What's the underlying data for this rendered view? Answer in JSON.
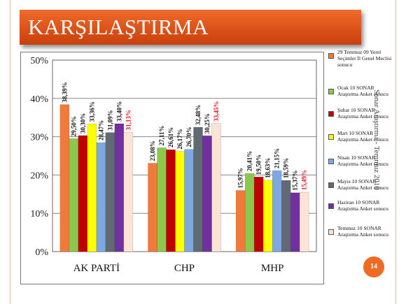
{
  "slide": {
    "title": "KARŞILAŞTIRMA",
    "side_text": "Sonar Araştırma - Temmuz 2010",
    "page_number": "14"
  },
  "colors": {
    "title_bar": "#e8561a",
    "badge": "#ef6a22"
  },
  "chart_data": {
    "type": "bar",
    "title": "",
    "xlabel": "",
    "ylabel": "",
    "ylim": [
      0,
      50
    ],
    "y_ticks": [
      "0%",
      "10%",
      "20%",
      "30%",
      "40%",
      "50%"
    ],
    "categories": [
      "AK PARTİ",
      "CHP",
      "MHP"
    ],
    "series": [
      {
        "name": "29 Temmuz 09 Yerel Seçimler İl Genel Meclisi sonucu",
        "color": "#f07a3a",
        "values": [
          38.39,
          23.08,
          15.97
        ],
        "labels": [
          "38,39%",
          "23,08%",
          "15,97%"
        ]
      },
      {
        "name": "Ocak 10 SONAR Araştırma Anket sonucu",
        "color": "#8cc84b",
        "values": [
          29.5,
          27.11,
          20.41
        ],
        "labels": [
          "29,50%",
          "27,11%",
          "20,41%"
        ]
      },
      {
        "name": "Şubat 10 SONAR Araştırma Anket sonucu",
        "color": "#c00000",
        "values": [
          30.3,
          26.61,
          19.5
        ],
        "labels": [
          "30,30%",
          "26,61%",
          "19,50%"
        ]
      },
      {
        "name": "Mart 10 SONAR Araştırma Anket sonucu",
        "color": "#ffff00",
        "values": [
          33.36,
          26.17,
          18.63
        ],
        "labels": [
          "33,36%",
          "26,17%",
          "18,63%"
        ]
      },
      {
        "name": "Nisan 10 SONAR Araştırma Anket sonucu",
        "color": "#7fa7e0",
        "values": [
          28.47,
          26.7,
          21.15
        ],
        "labels": [
          "28,47%",
          "26,70%",
          "21,15%"
        ]
      },
      {
        "name": "Mayıs 10 SONAR Araştırma Anket sonucu",
        "color": "#5f6a72",
        "values": [
          31.09,
          32.48,
          18.59
        ],
        "labels": [
          "31,09%",
          "32,48%",
          "18,59%"
        ]
      },
      {
        "name": "Haziran 10 SONAR Araştırma Anket sonucu",
        "color": "#7030a0",
        "values": [
          33.4,
          30.25,
          15.37
        ],
        "labels": [
          "33,40%",
          "30,25%",
          "15,37%"
        ]
      },
      {
        "name": "Temmuz 10 SONAR Araştırma Anket sonucu",
        "color": "#fbe3d6",
        "values": [
          31.13,
          33.45,
          15.49
        ],
        "labels": [
          "31,13%",
          "33,45%",
          "15,49%"
        ],
        "label_color": "#e8101c"
      }
    ],
    "legend": {
      "position": "right"
    },
    "grid": true
  }
}
